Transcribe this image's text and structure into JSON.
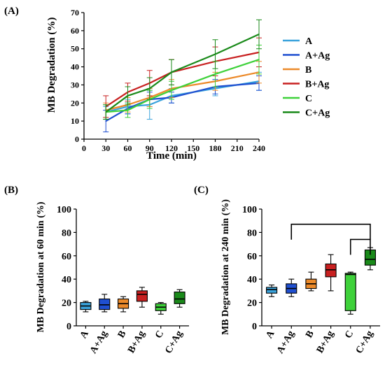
{
  "chart_data": [
    {
      "type": "line",
      "panel_label": "(A)",
      "xlabel": "Time (min)",
      "ylabel": "MB Degradation (%)",
      "x": [
        30,
        60,
        90,
        120,
        180,
        240
      ],
      "xlim": [
        0,
        240
      ],
      "ylim": [
        0,
        70
      ],
      "xticks": [
        "0",
        "30",
        "60",
        "90",
        "120",
        "150",
        "180",
        "210",
        "240"
      ],
      "yticks": [
        "0",
        "10",
        "20",
        "30",
        "40",
        "50",
        "60",
        "70"
      ],
      "legend_position": "right",
      "series": [
        {
          "name": "A",
          "color": "#3aa3dc",
          "values": [
            15,
            18,
            19,
            24,
            28,
            32
          ],
          "errors": [
            3,
            4,
            8,
            4,
            4,
            5
          ]
        },
        {
          "name": "A+Ag",
          "color": "#1f4fd0",
          "values": [
            10,
            17,
            22,
            23,
            29,
            31
          ],
          "errors": [
            6,
            3,
            4,
            3,
            4,
            4
          ]
        },
        {
          "name": "B",
          "color": "#ec8a2a",
          "values": [
            16,
            19,
            23,
            28,
            32,
            37
          ],
          "errors": [
            4,
            4,
            5,
            5,
            5,
            6
          ]
        },
        {
          "name": "B+Ag",
          "color": "#c82020",
          "values": [
            18,
            26,
            31,
            37,
            43,
            48
          ],
          "errors": [
            6,
            5,
            7,
            7,
            8,
            8
          ]
        },
        {
          "name": "C",
          "color": "#3ed13a",
          "values": [
            15,
            16,
            22,
            27,
            36,
            44
          ],
          "errors": [
            4,
            4,
            5,
            5,
            7,
            8
          ]
        },
        {
          "name": "C+Ag",
          "color": "#1a8a1a",
          "values": [
            15,
            24,
            28,
            37,
            47,
            58
          ],
          "errors": [
            4,
            5,
            6,
            7,
            8,
            8
          ]
        }
      ]
    },
    {
      "type": "box",
      "panel_label": "(B)",
      "ylabel": "MB Degradation at 60 min (%)",
      "ylim": [
        0,
        100
      ],
      "yticks": [
        "0",
        "20",
        "40",
        "60",
        "80",
        "100"
      ],
      "categories": [
        "A",
        "A+Ag",
        "B",
        "B+Ag",
        "C",
        "C+Ag"
      ],
      "colors": [
        "#3aa3dc",
        "#1f4fd0",
        "#ec8a2a",
        "#c82020",
        "#3ed13a",
        "#1a8a1a"
      ],
      "boxes": [
        {
          "min": 12,
          "q1": 14,
          "median": 17,
          "q3": 20,
          "max": 21
        },
        {
          "min": 12,
          "q1": 14,
          "median": 18,
          "q3": 23,
          "max": 27
        },
        {
          "min": 12,
          "q1": 15,
          "median": 19,
          "q3": 23,
          "max": 25
        },
        {
          "min": 16,
          "q1": 21,
          "median": 27,
          "q3": 30,
          "max": 33
        },
        {
          "min": 10,
          "q1": 13,
          "median": 16,
          "q3": 19,
          "max": 20
        },
        {
          "min": 16,
          "q1": 19,
          "median": 23,
          "q3": 29,
          "max": 31
        }
      ]
    },
    {
      "type": "box",
      "panel_label": "(C)",
      "ylabel": "MB Degradation at 240 min (%)",
      "ylim": [
        0,
        100
      ],
      "yticks": [
        "0",
        "20",
        "40",
        "60",
        "80",
        "100"
      ],
      "categories": [
        "A",
        "A+Ag",
        "B",
        "B+Ag",
        "C",
        "C+Ag"
      ],
      "colors": [
        "#3aa3dc",
        "#1f4fd0",
        "#ec8a2a",
        "#c82020",
        "#3ed13a",
        "#1a8a1a"
      ],
      "boxes": [
        {
          "min": 25,
          "q1": 28,
          "median": 31,
          "q3": 33,
          "max": 35
        },
        {
          "min": 25,
          "q1": 28,
          "median": 32,
          "q3": 36,
          "max": 40
        },
        {
          "min": 30,
          "q1": 32,
          "median": 36,
          "q3": 40,
          "max": 46
        },
        {
          "min": 30,
          "q1": 42,
          "median": 48,
          "q3": 53,
          "max": 61
        },
        {
          "min": 10,
          "q1": 13,
          "median": 44,
          "q3": 45,
          "max": 46
        },
        {
          "min": 48,
          "q1": 52,
          "median": 57,
          "q3": 65,
          "max": 67
        }
      ],
      "significance_brackets": [
        {
          "from": "A+Ag",
          "to": "C+Ag",
          "level": 87
        },
        {
          "from": "C",
          "to": "C+Ag",
          "level": 74
        }
      ]
    }
  ]
}
